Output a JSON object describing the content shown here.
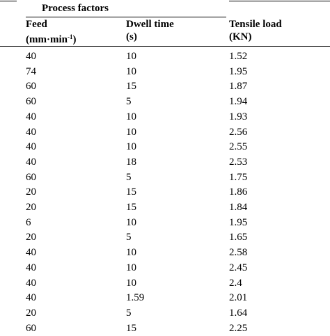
{
  "header": {
    "group_label": "Process factors",
    "feed_label": "Feed",
    "feed_unit_prefix": "(mm·min",
    "feed_unit_exp": "-1",
    "feed_unit_suffix": ")",
    "dwell_label": "Dwell time",
    "dwell_unit": "(s)",
    "load_label": "Tensile load",
    "load_unit": "(KN)"
  },
  "rows": [
    {
      "feed": "40",
      "dwell": "10",
      "load": "1.52"
    },
    {
      "feed": "74",
      "dwell": "10",
      "load": "1.95"
    },
    {
      "feed": "60",
      "dwell": "15",
      "load": "1.87"
    },
    {
      "feed": "60",
      "dwell": "5",
      "load": "1.94"
    },
    {
      "feed": "40",
      "dwell": "10",
      "load": "1.93"
    },
    {
      "feed": "40",
      "dwell": "10",
      "load": "2.56"
    },
    {
      "feed": "40",
      "dwell": "10",
      "load": "2.55"
    },
    {
      "feed": "40",
      "dwell": "18",
      "load": "2.53"
    },
    {
      "feed": "60",
      "dwell": "5",
      "load": "1.75"
    },
    {
      "feed": "20",
      "dwell": "15",
      "load": "1.86"
    },
    {
      "feed": "20",
      "dwell": "15",
      "load": "1.84"
    },
    {
      "feed": "6",
      "dwell": "10",
      "load": "1.95"
    },
    {
      "feed": "20",
      "dwell": "5",
      "load": "1.65"
    },
    {
      "feed": "40",
      "dwell": "10",
      "load": "2.58"
    },
    {
      "feed": "40",
      "dwell": "10",
      "load": "2.45"
    },
    {
      "feed": "40",
      "dwell": "10",
      "load": "2.4"
    },
    {
      "feed": "40",
      "dwell": "1.59",
      "load": "2.01"
    },
    {
      "feed": "20",
      "dwell": "5",
      "load": "1.64"
    },
    {
      "feed": "60",
      "dwell": "15",
      "load": "2.25"
    }
  ]
}
